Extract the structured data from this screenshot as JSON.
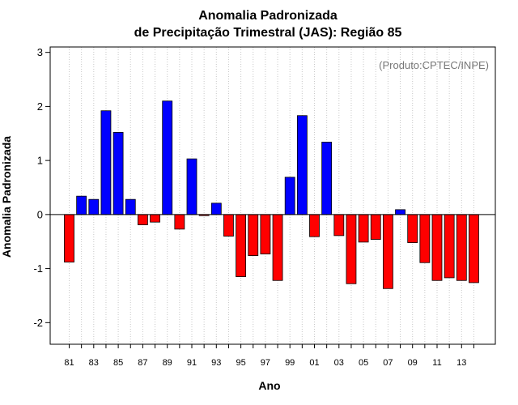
{
  "chart_data": {
    "type": "bar",
    "title_line1": "Anomalia Padronizada",
    "title_line2": "de Precipitação Trimestral (JAS): Região 85",
    "xlabel": "Ano",
    "ylabel": "Anomalia Padronizada",
    "annotation": "(Produto:CPTEC/INPE)",
    "ylim": [
      -2.4,
      3.1
    ],
    "yticks": [
      -2,
      -1,
      0,
      1,
      2,
      3
    ],
    "ytick_labels": [
      "-2",
      "-1",
      "0",
      "1",
      "2",
      "3"
    ],
    "grid": "vertical dotted",
    "positive_color": "#0000ff",
    "negative_color": "#ff0000",
    "categories": [
      "81",
      "82",
      "83",
      "84",
      "85",
      "86",
      "87",
      "88",
      "89",
      "90",
      "91",
      "92",
      "93",
      "94",
      "95",
      "96",
      "97",
      "98",
      "99",
      "00",
      "01",
      "02",
      "03",
      "04",
      "05",
      "06",
      "07",
      "08",
      "09",
      "10",
      "11",
      "12",
      "13",
      "14"
    ],
    "xtick_labels": [
      "81",
      "83",
      "85",
      "87",
      "89",
      "91",
      "93",
      "95",
      "97",
      "99",
      "01",
      "03",
      "05",
      "07",
      "09",
      "11",
      "13"
    ],
    "values": [
      -0.88,
      0.34,
      0.28,
      1.92,
      1.52,
      0.28,
      -0.19,
      -0.14,
      2.1,
      -0.27,
      1.03,
      -0.02,
      0.21,
      -0.4,
      -1.15,
      -0.76,
      -0.73,
      -1.22,
      0.69,
      1.83,
      -0.41,
      1.34,
      -0.39,
      -1.28,
      -0.51,
      -0.46,
      -1.37,
      0.09,
      -0.52,
      -0.89,
      -1.22,
      -1.17,
      -1.22,
      -1.26
    ]
  }
}
